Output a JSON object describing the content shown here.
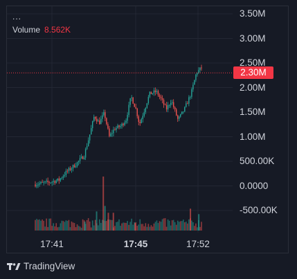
{
  "legend": {
    "symbol": "...",
    "volume_label": "Volume",
    "volume_value": "8.562K"
  },
  "brand": {
    "name": "TradingView"
  },
  "last_price": {
    "label": "2.30M",
    "value": 2300000
  },
  "colors": {
    "up": "#26a69a",
    "down": "#ef5350",
    "badge": "#f23645",
    "background": "#161a25"
  },
  "chart_data": {
    "type": "candlestick",
    "title": "",
    "y_axis": {
      "tick_labels": [
        "3.50M",
        "3.00M",
        "2.50M",
        "2.00M",
        "1.50M",
        "1.00M",
        "500.00K",
        "0.0000",
        "-500.00K"
      ],
      "tick_values": [
        3500000,
        3000000,
        2500000,
        2000000,
        1500000,
        1000000,
        500000,
        0,
        -500000
      ],
      "range": [
        -500000,
        3500000
      ],
      "position": "right"
    },
    "x_axis": {
      "tick_labels": [
        "17:41",
        "17:45",
        "17:52"
      ],
      "bold_labels": [
        "17:45"
      ],
      "range": [
        "17:39",
        "17:55"
      ]
    },
    "grid": true,
    "last_price_line": {
      "value": 2300000,
      "style": "dotted",
      "color": "#f23645"
    },
    "price_path": [
      [
        0.0,
        30000
      ],
      [
        0.06,
        60000
      ],
      [
        0.1,
        80000
      ],
      [
        0.15,
        120000
      ],
      [
        0.19,
        270000
      ],
      [
        0.25,
        440000
      ],
      [
        0.3,
        620000
      ],
      [
        0.33,
        1000000
      ],
      [
        0.36,
        1420000
      ],
      [
        0.39,
        1280000
      ],
      [
        0.42,
        1480000
      ],
      [
        0.45,
        1000000
      ],
      [
        0.48,
        1160000
      ],
      [
        0.52,
        1220000
      ],
      [
        0.55,
        1350000
      ],
      [
        0.58,
        1820000
      ],
      [
        0.61,
        1550000
      ],
      [
        0.63,
        1250000
      ],
      [
        0.66,
        1550000
      ],
      [
        0.69,
        1870000
      ],
      [
        0.73,
        1920000
      ],
      [
        0.76,
        1760000
      ],
      [
        0.79,
        1560000
      ],
      [
        0.82,
        1740000
      ],
      [
        0.86,
        1340000
      ],
      [
        0.9,
        1570000
      ],
      [
        0.94,
        1900000
      ],
      [
        0.97,
        2300000
      ],
      [
        1.0,
        2400000
      ]
    ],
    "volume_series": {
      "name": "Volume",
      "spikes": [
        [
          0.41,
          790000,
          "down"
        ],
        [
          0.42,
          360000,
          "up"
        ],
        [
          0.37,
          280000,
          "up"
        ],
        [
          0.44,
          260000,
          "down"
        ],
        [
          0.47,
          260000,
          "down"
        ],
        [
          0.93,
          320000,
          "down"
        ],
        [
          0.98,
          240000,
          "up"
        ],
        [
          0.6,
          110000,
          "down"
        ],
        [
          0.3,
          130000,
          "up"
        ]
      ]
    }
  }
}
